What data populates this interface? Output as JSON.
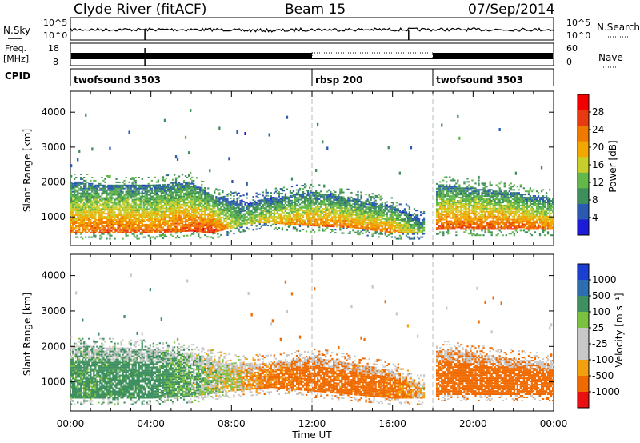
{
  "header": {
    "station": "Clyde River (fitACF)",
    "beam": "Beam 15",
    "date": "07/Sep/2014"
  },
  "colors": {
    "power_scale": [
      "#1b1bd8",
      "#2a5bb0",
      "#3f8f5c",
      "#62b84a",
      "#c9cf2a",
      "#f2a800",
      "#f07a00",
      "#e83a10",
      "#f20000"
    ],
    "velocity_scale": [
      "#e81010",
      "#f06a00",
      "#f2a010",
      "#c8c8c8",
      "#c8c8c8",
      "#7cc040",
      "#3f9060",
      "#2d6db0",
      "#1b3fd0"
    ],
    "gap_line": "#bbbbbb"
  },
  "panels": {
    "nsky": {
      "label": "N.Sky",
      "ticks_left": [
        "10^5",
        "10^0"
      ],
      "ticks_right": [
        "10^5",
        "10^0"
      ],
      "right_label": "N.Search"
    },
    "freq": {
      "label_top": "Freq.",
      "label_bottom": "[MHz]",
      "ticks_left": [
        "18",
        "8"
      ],
      "ticks_right": [
        "60",
        "0"
      ],
      "right_label": "Nave"
    },
    "cpid": {
      "label": "CPID",
      "segments": [
        {
          "name": "twofsound 3503",
          "start_h": 0.0,
          "end_h": 12.0
        },
        {
          "name": "rbsp 200",
          "start_h": 12.0,
          "end_h": 18.0
        },
        {
          "name": "twofsound 3503",
          "start_h": 18.0,
          "end_h": 24.0
        }
      ]
    },
    "power": {
      "ylabel": "Slant Range [km]",
      "yticks": [
        "4000",
        "3000",
        "2000",
        "1000"
      ],
      "colorbar_label": "Power [dB]",
      "colorbar_ticks": [
        "28",
        "24",
        "20",
        "16",
        "12",
        "8",
        "4"
      ]
    },
    "velocity": {
      "ylabel": "Slant Range [km]",
      "yticks": [
        "4000",
        "3000",
        "2000",
        "1000"
      ],
      "colorbar_label": "Velocity [m s⁻¹]",
      "colorbar_ticks": [
        "1000",
        "500",
        "100",
        "25",
        "-25",
        "-100",
        "-500",
        "-1000"
      ]
    }
  },
  "xaxis": {
    "label": "Time UT",
    "ticks": [
      "00:00",
      "04:00",
      "08:00",
      "12:00",
      "16:00",
      "20:00",
      "00:00"
    ]
  },
  "chart_data": [
    {
      "type": "heatmap",
      "name_hint": "power",
      "x_range_hours": [
        0,
        24
      ],
      "y_range_km": [
        180,
        4600
      ],
      "color_range": [
        0,
        32
      ],
      "band_profile": [
        {
          "t": 0.0,
          "low": 500,
          "high": 2000,
          "mean": 20
        },
        {
          "t": 2.0,
          "low": 500,
          "high": 1900,
          "mean": 22
        },
        {
          "t": 4.0,
          "low": 500,
          "high": 1900,
          "mean": 20
        },
        {
          "t": 6.0,
          "low": 550,
          "high": 2000,
          "mean": 22
        },
        {
          "t": 7.0,
          "low": 500,
          "high": 1600,
          "mean": 24
        },
        {
          "t": 8.5,
          "low": 700,
          "high": 1400,
          "mean": 12
        },
        {
          "t": 9.5,
          "low": 800,
          "high": 1500,
          "mean": 16
        },
        {
          "t": 12.0,
          "low": 700,
          "high": 1700,
          "mean": 20
        },
        {
          "t": 14.0,
          "low": 650,
          "high": 1500,
          "mean": 20
        },
        {
          "t": 16.0,
          "low": 500,
          "high": 1300,
          "mean": 20
        },
        {
          "t": 17.5,
          "low": 500,
          "high": 900,
          "mean": 12
        },
        {
          "t": 18.3,
          "low": 600,
          "high": 1900,
          "mean": 22
        },
        {
          "t": 22.0,
          "low": 600,
          "high": 1700,
          "mean": 22
        },
        {
          "t": 24.0,
          "low": 600,
          "high": 1500,
          "mean": 20
        }
      ]
    },
    {
      "type": "heatmap",
      "name_hint": "velocity",
      "x_range_hours": [
        0,
        24
      ],
      "y_range_km": [
        180,
        4600
      ],
      "color_range": [
        -1000,
        1000
      ],
      "band_profile": [
        {
          "t": 0.0,
          "low": 500,
          "high": 2000,
          "mean": 150
        },
        {
          "t": 4.0,
          "low": 500,
          "high": 1900,
          "mean": 200
        },
        {
          "t": 6.0,
          "low": 550,
          "high": 1800,
          "mean": 80
        },
        {
          "t": 8.0,
          "low": 700,
          "high": 1500,
          "mean": 0
        },
        {
          "t": 10.0,
          "low": 800,
          "high": 1500,
          "mean": -150
        },
        {
          "t": 12.0,
          "low": 700,
          "high": 1700,
          "mean": -200
        },
        {
          "t": 16.0,
          "low": 500,
          "high": 1300,
          "mean": -180
        },
        {
          "t": 17.5,
          "low": 500,
          "high": 900,
          "mean": -50
        },
        {
          "t": 18.3,
          "low": 600,
          "high": 1900,
          "mean": -200
        },
        {
          "t": 24.0,
          "low": 600,
          "high": 1500,
          "mean": -200
        }
      ]
    }
  ]
}
